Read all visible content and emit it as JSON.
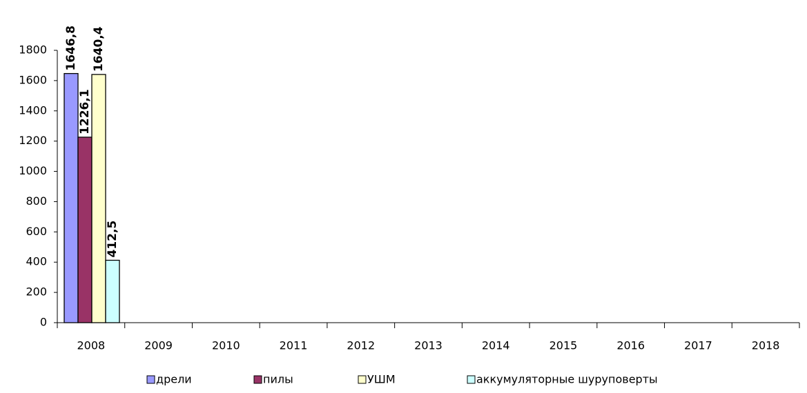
{
  "chart_data": {
    "type": "bar",
    "categories": [
      "2008",
      "2009",
      "2010",
      "2011",
      "2012",
      "2013",
      "2014",
      "2015",
      "2016",
      "2017",
      "2018"
    ],
    "series": [
      {
        "name": "дрели",
        "color": "#9999ff",
        "values": [
          1646.8,
          null,
          null,
          null,
          null,
          null,
          null,
          null,
          null,
          null,
          null
        ],
        "value_labels": [
          "1646,8",
          null,
          null,
          null,
          null,
          null,
          null,
          null,
          null,
          null,
          null
        ]
      },
      {
        "name": "пилы",
        "color": "#993366",
        "values": [
          1226.1,
          null,
          null,
          null,
          null,
          null,
          null,
          null,
          null,
          null,
          null
        ],
        "value_labels": [
          "1226,1",
          null,
          null,
          null,
          null,
          null,
          null,
          null,
          null,
          null,
          null
        ]
      },
      {
        "name": "УШМ",
        "color": "#ffffcc",
        "values": [
          1640.4,
          null,
          null,
          null,
          null,
          null,
          null,
          null,
          null,
          null,
          null
        ],
        "value_labels": [
          "1640,4",
          null,
          null,
          null,
          null,
          null,
          null,
          null,
          null,
          null,
          null
        ]
      },
      {
        "name": "аккумуляторные шуруповерты",
        "color": "#ccffff",
        "values": [
          412.5,
          null,
          null,
          null,
          null,
          null,
          null,
          null,
          null,
          null,
          null
        ],
        "value_labels": [
          "412,5",
          null,
          null,
          null,
          null,
          null,
          null,
          null,
          null,
          null,
          null
        ]
      }
    ],
    "ylim": [
      0,
      1800
    ],
    "yticks": [
      0,
      200,
      400,
      600,
      800,
      1000,
      1200,
      1400,
      1600,
      1800
    ],
    "grid": false,
    "legend": "bottom"
  }
}
